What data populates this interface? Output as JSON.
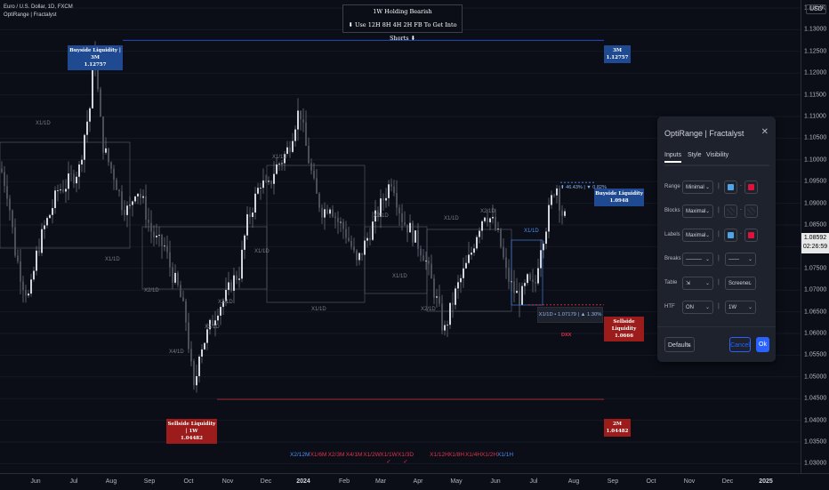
{
  "symbol": {
    "line1": "Euro / U.S. Dollar, 1D, FXCM",
    "line2": "OptiRange | Fractalyst"
  },
  "currency": "USD",
  "banner": {
    "line1": "1W Holding Bearish",
    "line2": "⬇ Use 12H 8H 4H 2H FB To Get Into Shorts ⬇"
  },
  "price_axis": [
    "1.13500",
    "1.13000",
    "1.12500",
    "1.12000",
    "1.11500",
    "1.11000",
    "1.10500",
    "1.10000",
    "1.09500",
    "1.09000",
    "1.08500",
    "1.08000",
    "1.07500",
    "1.07000",
    "1.06500",
    "1.06000",
    "1.05500",
    "1.05000",
    "1.04500",
    "1.04000",
    "1.03500",
    "1.03000"
  ],
  "last_price": {
    "price": "1.08592",
    "countdown": "02:26:59"
  },
  "time_axis": [
    {
      "label": "Jun",
      "bold": false
    },
    {
      "label": "Jul",
      "bold": false
    },
    {
      "label": "Aug",
      "bold": false
    },
    {
      "label": "Sep",
      "bold": false
    },
    {
      "label": "Oct",
      "bold": false
    },
    {
      "label": "Nov",
      "bold": false
    },
    {
      "label": "Dec",
      "bold": false
    },
    {
      "label": "2024",
      "bold": true
    },
    {
      "label": "Feb",
      "bold": false
    },
    {
      "label": "Mar",
      "bold": false
    },
    {
      "label": "Apr",
      "bold": false
    },
    {
      "label": "May",
      "bold": false
    },
    {
      "label": "Jun",
      "bold": false
    },
    {
      "label": "Jul",
      "bold": false
    },
    {
      "label": "Aug",
      "bold": false
    },
    {
      "label": "Sep",
      "bold": false
    },
    {
      "label": "Oct",
      "bold": false
    },
    {
      "label": "Nov",
      "bold": false
    },
    {
      "label": "Dec",
      "bold": false
    },
    {
      "label": "2025",
      "bold": true
    }
  ],
  "labels": {
    "buyside_left": {
      "title": "Buyside Liquidity | 3M",
      "price": "1.12757"
    },
    "buyside_right": {
      "title": "3M",
      "price": "1.12757"
    },
    "sellside_left": {
      "title": "Sellside Liquidity | 1W",
      "price": "1.04482"
    },
    "sellside_right": {
      "title": "2M",
      "price": "1.04482"
    },
    "buyside_current": {
      "title": "Buyside Liquidity",
      "price": "1.0948"
    },
    "sellside_current": {
      "title": "Sellside Liquidity",
      "price": "1.0666"
    },
    "range_stats": "⬆ 46.43% | ▼ 0.82%",
    "range_info": "X1/1D • 1.07179 | ▲ 1.30%",
    "dxx": "DXX",
    "x1_1d_a": "X1/1D",
    "x1_1d_b": "X1/1D",
    "x1_1d_c": "X1/1D",
    "x1_1d_d": "X1/1D",
    "x1_1d_e": "X1/1D",
    "x1_1d_f": "X1/1D",
    "x1_1d_g": "X1/1D",
    "x1_1d_h": "X1/1D",
    "x2_1d_a": "X2/1D",
    "x2_1d_b": "X2/1D",
    "x2_1d_c": "X2/1D",
    "x2_1d_d": "X2/1D",
    "x2_1d_e": "X2/1D",
    "x2_1d_f": "X2/1D",
    "x4_1d": "X4/1D"
  },
  "legend": [
    {
      "text": "X2/12M",
      "color": "#4d8df7"
    },
    {
      "text": "X1/6M",
      "color": "#e0314b"
    },
    {
      "text": "X2/3M",
      "color": "#e0314b"
    },
    {
      "text": "X4/1M",
      "color": "#e0314b"
    },
    {
      "text": "X1/2W",
      "color": "#e0314b"
    },
    {
      "text": "X1/1W\n✓",
      "color": "#e0314b"
    },
    {
      "text": "X1/3D\n✓",
      "color": "#e0314b"
    },
    {
      "text": "X1/12H",
      "color": "#e0314b"
    },
    {
      "text": "X1/8H",
      "color": "#e0314b"
    },
    {
      "text": "X1/4H",
      "color": "#e0314b"
    },
    {
      "text": "X1/2H",
      "color": "#e0314b"
    },
    {
      "text": "X1/1H",
      "color": "#4d8df7"
    }
  ],
  "panel": {
    "title": "OptiRange | Fractalyst",
    "tabs": [
      "Inputs",
      "Style",
      "Visibility"
    ],
    "rows": {
      "range": {
        "label": "Range",
        "value": "Minimal",
        "color1": "#4fa3e8",
        "color2": "#e0113a"
      },
      "blocks": {
        "label": "Blocks",
        "value": "Maximal"
      },
      "labels": {
        "label": "Labels",
        "value": "Maximal",
        "color1": "#4fa3e8",
        "color2": "#e0113a"
      },
      "breaks": {
        "label": "Breaks",
        "value1": "———",
        "value2": "——"
      },
      "table": {
        "label": "Table",
        "value1": "⇲",
        "value2": "Screener"
      },
      "htf": {
        "label": "HTF",
        "value1": "ON",
        "value2": "1W"
      }
    },
    "defaults": "Defaults",
    "cancel": "Cancel",
    "ok": "Ok"
  },
  "chart_data": {
    "type": "candlestick",
    "title": "Euro / U.S. Dollar, 1D, FXCM",
    "unit": "USD",
    "ylim": [
      1.0275,
      1.1375
    ],
    "levels": [
      {
        "name": "Buyside Liquidity 3M",
        "value": 1.12757
      },
      {
        "name": "Sellside Liquidity 1W",
        "value": 1.04482
      },
      {
        "name": "Buyside Liquidity",
        "value": 1.0948
      },
      {
        "name": "Sellside Liquidity",
        "value": 1.0666
      }
    ],
    "path": [
      [
        0,
        1.098
      ],
      [
        8,
        1.092
      ],
      [
        16,
        1.079
      ],
      [
        24,
        1.072
      ],
      [
        32,
        1.068
      ],
      [
        40,
        1.078
      ],
      [
        48,
        1.084
      ],
      [
        56,
        1.088
      ],
      [
        64,
        1.093
      ],
      [
        72,
        1.094
      ],
      [
        80,
        1.096
      ],
      [
        88,
        1.098
      ],
      [
        94,
        1.106
      ],
      [
        100,
        1.112
      ],
      [
        104,
        1.1275
      ],
      [
        108,
        1.118
      ],
      [
        114,
        1.104
      ],
      [
        120,
        1.1
      ],
      [
        128,
        1.096
      ],
      [
        136,
        1.09
      ],
      [
        144,
        1.088
      ],
      [
        152,
        1.094
      ],
      [
        160,
        1.09
      ],
      [
        168,
        1.084
      ],
      [
        176,
        1.081
      ],
      [
        184,
        1.08
      ],
      [
        192,
        1.074
      ],
      [
        200,
        1.07
      ],
      [
        208,
        1.063
      ],
      [
        214,
        1.052
      ],
      [
        218,
        1.045
      ],
      [
        222,
        1.056
      ],
      [
        228,
        1.058
      ],
      [
        236,
        1.062
      ],
      [
        244,
        1.066
      ],
      [
        252,
        1.068
      ],
      [
        260,
        1.072
      ],
      [
        268,
        1.074
      ],
      [
        276,
        1.085
      ],
      [
        284,
        1.09
      ],
      [
        292,
        1.095
      ],
      [
        300,
        1.093
      ],
      [
        308,
        1.098
      ],
      [
        316,
        1.1
      ],
      [
        324,
        1.103
      ],
      [
        330,
        1.108
      ],
      [
        336,
        1.112
      ],
      [
        342,
        1.104
      ],
      [
        348,
        1.098
      ],
      [
        354,
        1.092
      ],
      [
        362,
        1.088
      ],
      [
        370,
        1.09
      ],
      [
        378,
        1.086
      ],
      [
        386,
        1.084
      ],
      [
        394,
        1.08
      ],
      [
        400,
        1.076
      ],
      [
        408,
        1.08
      ],
      [
        416,
        1.084
      ],
      [
        424,
        1.088
      ],
      [
        432,
        1.092
      ],
      [
        440,
        1.096
      ],
      [
        446,
        1.09
      ],
      [
        452,
        1.086
      ],
      [
        460,
        1.084
      ],
      [
        468,
        1.081
      ],
      [
        476,
        1.078
      ],
      [
        484,
        1.072
      ],
      [
        492,
        1.066
      ],
      [
        498,
        1.06
      ],
      [
        506,
        1.066
      ],
      [
        512,
        1.07
      ],
      [
        520,
        1.074
      ],
      [
        528,
        1.078
      ],
      [
        536,
        1.084
      ],
      [
        544,
        1.088
      ],
      [
        552,
        1.086
      ],
      [
        560,
        1.082
      ],
      [
        568,
        1.074
      ],
      [
        576,
        1.07
      ],
      [
        584,
        1.068
      ],
      [
        592,
        1.072
      ],
      [
        600,
        1.07
      ],
      [
        606,
        1.08
      ],
      [
        612,
        1.084
      ],
      [
        618,
        1.09
      ],
      [
        624,
        1.095
      ],
      [
        630,
        1.088
      ],
      [
        636,
        1.086
      ]
    ]
  }
}
